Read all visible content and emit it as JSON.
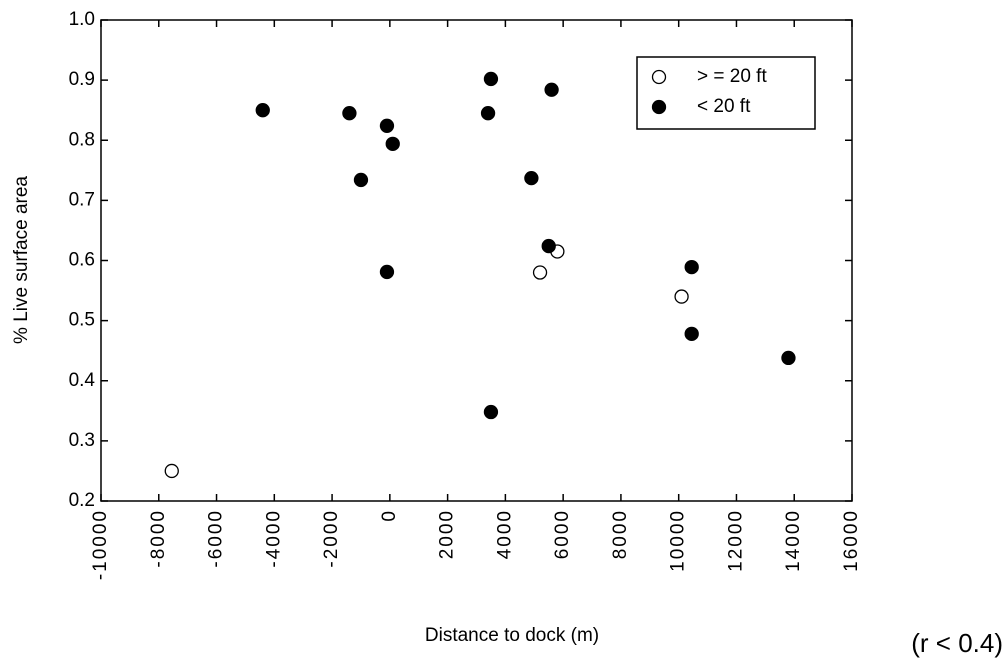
{
  "chart_data": {
    "type": "scatter",
    "xlabel": "Distance to dock (m)",
    "ylabel": "% Live surface area",
    "annotation": "(r < 0.4)",
    "xlim": [
      -10000,
      16000
    ],
    "xticks": [
      -10000,
      -8000,
      -6000,
      -4000,
      -2000,
      0,
      2000,
      4000,
      6000,
      8000,
      10000,
      12000,
      14000,
      16000
    ],
    "ylim": [
      0.2,
      1.0
    ],
    "yticks": [
      0.2,
      0.3,
      0.4,
      0.5,
      0.6,
      0.7,
      0.8,
      0.9,
      {
        "value": 1.0,
        "label": "1.0"
      }
    ],
    "legend": "top-right",
    "series": [
      {
        "name": "> = 20 ft",
        "color": "#000000",
        "marker": "open",
        "x": [
          -7550,
          5200,
          5800,
          10100
        ],
        "values": [
          0.25,
          0.58,
          0.615,
          0.54
        ]
      },
      {
        "name": "< 20 ft",
        "color": "#000000",
        "marker": "filled",
        "x": [
          -4400,
          -1400,
          -1000,
          -100,
          100,
          -100,
          3400,
          3500,
          5600,
          4900,
          5500,
          10450,
          10450,
          13800,
          3500
        ],
        "values": [
          0.85,
          0.845,
          0.734,
          0.824,
          0.794,
          0.581,
          0.845,
          0.902,
          0.884,
          0.737,
          0.624,
          0.589,
          0.478,
          0.438,
          0.348
        ]
      }
    ]
  }
}
